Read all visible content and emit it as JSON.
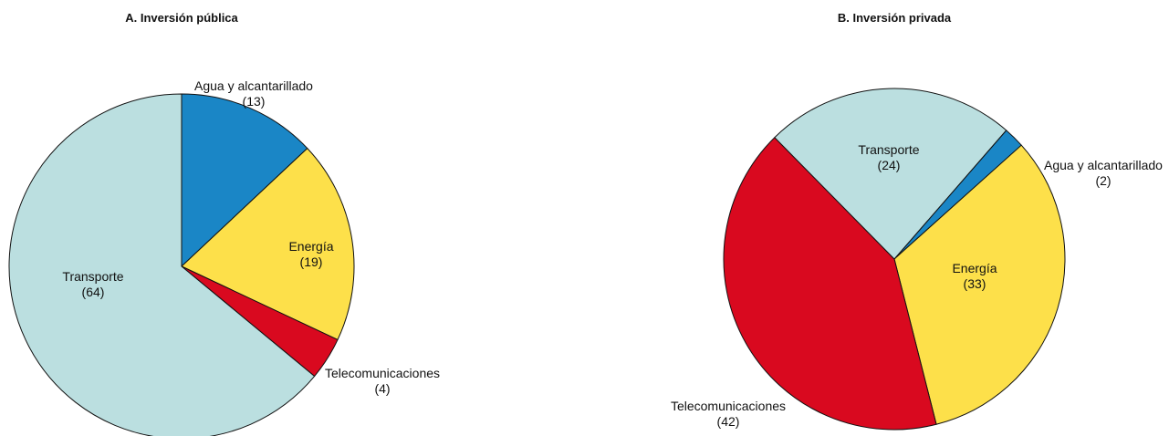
{
  "chart_data": [
    {
      "type": "pie",
      "title": "A. Inversión pública",
      "slices": [
        {
          "name": "Agua y alcantarillado",
          "value": 13,
          "value_label": "(13)",
          "color": "#1a86c6"
        },
        {
          "name": "Energía",
          "value": 19,
          "value_label": "(19)",
          "color": "#fde04a"
        },
        {
          "name": "Telecomunicaciones",
          "value": 4,
          "value_label": "(4)",
          "color": "#d9091f"
        },
        {
          "name": "Transporte",
          "value": 64,
          "value_label": "(64)",
          "color": "#bbdfe0"
        }
      ]
    },
    {
      "type": "pie",
      "title": "B. Inversión privada",
      "slices": [
        {
          "name": "Agua y alcantarillado",
          "value": 2,
          "value_label": "(2)",
          "color": "#1a86c6"
        },
        {
          "name": "Energía",
          "value": 33,
          "value_label": "(33)",
          "color": "#fde04a"
        },
        {
          "name": "Telecomunicaciones",
          "value": 42,
          "value_label": "(42)",
          "color": "#d9091f"
        },
        {
          "name": "Transporte",
          "value": 24,
          "value_label": "(24)",
          "color": "#bbdfe0"
        }
      ]
    }
  ]
}
